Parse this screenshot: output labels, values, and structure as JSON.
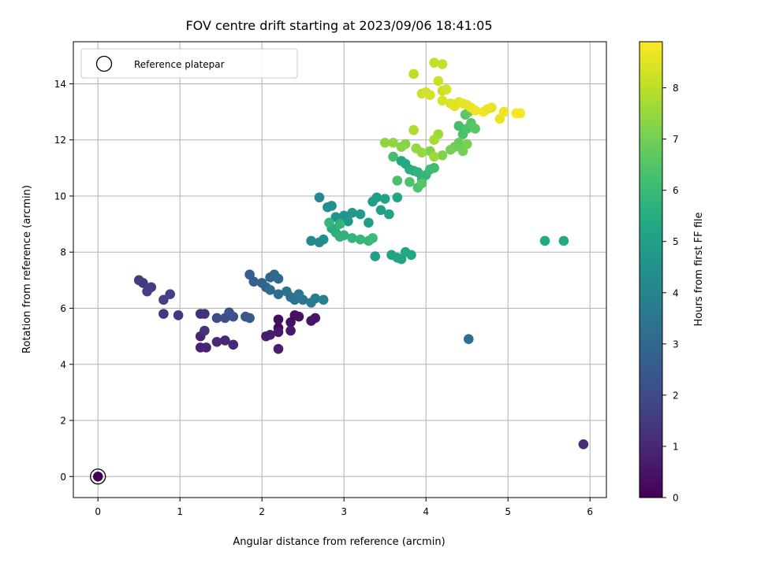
{
  "chart_data": {
    "type": "scatter",
    "title": "FOV centre drift starting at 2023/09/06 18:41:05",
    "xlabel": "Angular distance from reference (arcmin)",
    "ylabel": "Rotation from reference (arcmin)",
    "xlim": [
      -0.3,
      6.2
    ],
    "ylim": [
      -0.75,
      15.5
    ],
    "xticks": [
      "0",
      "1",
      "2",
      "3",
      "4",
      "5",
      "6"
    ],
    "yticks": [
      "0",
      "2",
      "4",
      "6",
      "8",
      "10",
      "12",
      "14"
    ],
    "grid": true,
    "legend": {
      "position": "top-left",
      "entries": [
        "Reference platepar"
      ]
    },
    "reference_point": {
      "x": 0,
      "y": 0
    },
    "colorbar": {
      "label": "Hours from first FF file",
      "range": [
        0,
        8.9
      ],
      "ticks": [
        "0",
        "1",
        "2",
        "3",
        "4",
        "5",
        "6",
        "7",
        "8"
      ],
      "colormap": "viridis"
    },
    "points": [
      {
        "x": 0.0,
        "y": 0.0,
        "h": 0.0
      },
      {
        "x": 2.2,
        "y": 5.3,
        "h": 0.2
      },
      {
        "x": 2.2,
        "y": 5.6,
        "h": 0.3
      },
      {
        "x": 2.35,
        "y": 5.5,
        "h": 0.4
      },
      {
        "x": 2.4,
        "y": 5.75,
        "h": 0.3
      },
      {
        "x": 2.45,
        "y": 5.7,
        "h": 0.4
      },
      {
        "x": 2.6,
        "y": 5.55,
        "h": 0.5
      },
      {
        "x": 2.65,
        "y": 5.65,
        "h": 0.5
      },
      {
        "x": 2.35,
        "y": 5.2,
        "h": 0.6
      },
      {
        "x": 2.2,
        "y": 5.15,
        "h": 0.6
      },
      {
        "x": 2.05,
        "y": 5.0,
        "h": 0.7
      },
      {
        "x": 2.1,
        "y": 5.05,
        "h": 0.7
      },
      {
        "x": 2.2,
        "y": 4.55,
        "h": 0.8
      },
      {
        "x": 1.25,
        "y": 5.0,
        "h": 0.9
      },
      {
        "x": 1.25,
        "y": 4.6,
        "h": 0.9
      },
      {
        "x": 1.32,
        "y": 4.6,
        "h": 0.9
      },
      {
        "x": 1.45,
        "y": 4.8,
        "h": 1.0
      },
      {
        "x": 1.55,
        "y": 4.85,
        "h": 1.0
      },
      {
        "x": 1.65,
        "y": 4.7,
        "h": 1.0
      },
      {
        "x": 5.92,
        "y": 1.15,
        "h": 1.1
      },
      {
        "x": 1.25,
        "y": 5.8,
        "h": 1.2
      },
      {
        "x": 1.3,
        "y": 5.8,
        "h": 1.2
      },
      {
        "x": 1.3,
        "y": 5.2,
        "h": 1.3
      },
      {
        "x": 0.8,
        "y": 5.8,
        "h": 1.4
      },
      {
        "x": 0.98,
        "y": 5.75,
        "h": 1.4
      },
      {
        "x": 0.5,
        "y": 7.0,
        "h": 1.5
      },
      {
        "x": 0.55,
        "y": 6.9,
        "h": 1.5
      },
      {
        "x": 0.6,
        "y": 6.6,
        "h": 1.6
      },
      {
        "x": 0.65,
        "y": 6.75,
        "h": 1.6
      },
      {
        "x": 0.8,
        "y": 6.3,
        "h": 1.7
      },
      {
        "x": 0.88,
        "y": 6.5,
        "h": 1.7
      },
      {
        "x": 1.45,
        "y": 5.65,
        "h": 2.0
      },
      {
        "x": 1.55,
        "y": 5.65,
        "h": 2.1
      },
      {
        "x": 1.6,
        "y": 5.85,
        "h": 2.2
      },
      {
        "x": 1.65,
        "y": 5.7,
        "h": 2.3
      },
      {
        "x": 1.8,
        "y": 5.7,
        "h": 2.4
      },
      {
        "x": 1.85,
        "y": 5.65,
        "h": 2.5
      },
      {
        "x": 1.85,
        "y": 7.2,
        "h": 2.6
      },
      {
        "x": 1.9,
        "y": 6.95,
        "h": 2.7
      },
      {
        "x": 2.0,
        "y": 6.9,
        "h": 2.8
      },
      {
        "x": 2.05,
        "y": 6.75,
        "h": 2.9
      },
      {
        "x": 2.1,
        "y": 7.1,
        "h": 2.9
      },
      {
        "x": 2.15,
        "y": 7.2,
        "h": 3.0
      },
      {
        "x": 2.2,
        "y": 7.05,
        "h": 3.0
      },
      {
        "x": 2.1,
        "y": 6.65,
        "h": 3.1
      },
      {
        "x": 2.2,
        "y": 6.5,
        "h": 3.2
      },
      {
        "x": 2.3,
        "y": 6.6,
        "h": 3.3
      },
      {
        "x": 2.35,
        "y": 6.4,
        "h": 3.3
      },
      {
        "x": 2.4,
        "y": 6.3,
        "h": 3.4
      },
      {
        "x": 2.45,
        "y": 6.5,
        "h": 3.5
      },
      {
        "x": 2.5,
        "y": 6.3,
        "h": 3.5
      },
      {
        "x": 2.6,
        "y": 6.2,
        "h": 3.6
      },
      {
        "x": 2.65,
        "y": 6.35,
        "h": 3.7
      },
      {
        "x": 2.75,
        "y": 6.3,
        "h": 3.8
      },
      {
        "x": 4.52,
        "y": 4.9,
        "h": 3.2
      },
      {
        "x": 2.6,
        "y": 8.4,
        "h": 4.1
      },
      {
        "x": 2.7,
        "y": 8.35,
        "h": 4.2
      },
      {
        "x": 2.75,
        "y": 8.45,
        "h": 4.3
      },
      {
        "x": 2.7,
        "y": 9.95,
        "h": 4.2
      },
      {
        "x": 2.8,
        "y": 9.6,
        "h": 4.4
      },
      {
        "x": 2.85,
        "y": 9.65,
        "h": 4.4
      },
      {
        "x": 2.9,
        "y": 9.25,
        "h": 4.5
      },
      {
        "x": 3.0,
        "y": 9.3,
        "h": 4.6
      },
      {
        "x": 3.05,
        "y": 9.1,
        "h": 4.7
      },
      {
        "x": 3.1,
        "y": 9.4,
        "h": 4.8
      },
      {
        "x": 3.2,
        "y": 9.35,
        "h": 4.8
      },
      {
        "x": 3.3,
        "y": 9.05,
        "h": 4.9
      },
      {
        "x": 3.35,
        "y": 9.8,
        "h": 4.9
      },
      {
        "x": 3.4,
        "y": 9.95,
        "h": 5.0
      },
      {
        "x": 3.45,
        "y": 9.5,
        "h": 5.0
      },
      {
        "x": 3.5,
        "y": 9.9,
        "h": 5.1
      },
      {
        "x": 3.55,
        "y": 9.35,
        "h": 5.1
      },
      {
        "x": 3.65,
        "y": 9.95,
        "h": 5.2
      },
      {
        "x": 3.38,
        "y": 7.85,
        "h": 5.0
      },
      {
        "x": 3.58,
        "y": 7.9,
        "h": 5.1
      },
      {
        "x": 3.65,
        "y": 7.8,
        "h": 5.2
      },
      {
        "x": 3.7,
        "y": 7.75,
        "h": 5.2
      },
      {
        "x": 3.75,
        "y": 8.0,
        "h": 5.3
      },
      {
        "x": 3.82,
        "y": 7.9,
        "h": 5.3
      },
      {
        "x": 5.45,
        "y": 8.4,
        "h": 5.4
      },
      {
        "x": 5.68,
        "y": 8.4,
        "h": 5.4
      },
      {
        "x": 2.85,
        "y": 8.85,
        "h": 5.5
      },
      {
        "x": 2.9,
        "y": 8.7,
        "h": 5.6
      },
      {
        "x": 2.95,
        "y": 8.55,
        "h": 5.7
      },
      {
        "x": 3.0,
        "y": 8.6,
        "h": 5.7
      },
      {
        "x": 3.1,
        "y": 8.5,
        "h": 5.8
      },
      {
        "x": 3.2,
        "y": 8.45,
        "h": 5.9
      },
      {
        "x": 3.3,
        "y": 8.4,
        "h": 5.9
      },
      {
        "x": 2.95,
        "y": 9.0,
        "h": 5.8
      },
      {
        "x": 2.82,
        "y": 9.05,
        "h": 5.9
      },
      {
        "x": 3.7,
        "y": 11.25,
        "h": 5.3
      },
      {
        "x": 3.75,
        "y": 11.15,
        "h": 5.4
      },
      {
        "x": 3.8,
        "y": 10.95,
        "h": 5.5
      },
      {
        "x": 3.85,
        "y": 10.9,
        "h": 5.6
      },
      {
        "x": 3.9,
        "y": 10.85,
        "h": 5.7
      },
      {
        "x": 3.95,
        "y": 10.6,
        "h": 5.8
      },
      {
        "x": 4.0,
        "y": 10.75,
        "h": 5.9
      },
      {
        "x": 4.05,
        "y": 10.95,
        "h": 6.0
      },
      {
        "x": 4.1,
        "y": 11.0,
        "h": 6.1
      },
      {
        "x": 3.6,
        "y": 11.4,
        "h": 6.2
      },
      {
        "x": 3.65,
        "y": 10.55,
        "h": 6.3
      },
      {
        "x": 3.8,
        "y": 10.5,
        "h": 6.4
      },
      {
        "x": 3.9,
        "y": 10.3,
        "h": 6.4
      },
      {
        "x": 3.95,
        "y": 10.45,
        "h": 6.5
      },
      {
        "x": 3.35,
        "y": 8.5,
        "h": 6.0
      },
      {
        "x": 4.4,
        "y": 12.5,
        "h": 6.2
      },
      {
        "x": 4.45,
        "y": 12.2,
        "h": 6.3
      },
      {
        "x": 4.5,
        "y": 12.4,
        "h": 6.4
      },
      {
        "x": 4.55,
        "y": 12.6,
        "h": 6.5
      },
      {
        "x": 4.6,
        "y": 12.4,
        "h": 6.6
      },
      {
        "x": 4.48,
        "y": 12.9,
        "h": 6.6
      },
      {
        "x": 4.52,
        "y": 13.0,
        "h": 6.7
      },
      {
        "x": 4.4,
        "y": 11.9,
        "h": 6.8
      },
      {
        "x": 4.35,
        "y": 11.75,
        "h": 6.9
      },
      {
        "x": 4.3,
        "y": 11.65,
        "h": 7.0
      },
      {
        "x": 4.45,
        "y": 11.6,
        "h": 7.0
      },
      {
        "x": 4.5,
        "y": 11.85,
        "h": 7.1
      },
      {
        "x": 4.2,
        "y": 11.45,
        "h": 7.2
      },
      {
        "x": 4.05,
        "y": 11.6,
        "h": 7.2
      },
      {
        "x": 3.7,
        "y": 11.75,
        "h": 7.3
      },
      {
        "x": 3.75,
        "y": 11.85,
        "h": 7.3
      },
      {
        "x": 3.6,
        "y": 11.9,
        "h": 7.4
      },
      {
        "x": 3.5,
        "y": 11.9,
        "h": 7.4
      },
      {
        "x": 3.88,
        "y": 11.7,
        "h": 7.5
      },
      {
        "x": 3.95,
        "y": 11.55,
        "h": 7.5
      },
      {
        "x": 4.1,
        "y": 11.4,
        "h": 7.6
      },
      {
        "x": 4.15,
        "y": 12.2,
        "h": 7.6
      },
      {
        "x": 4.1,
        "y": 12.0,
        "h": 7.7
      },
      {
        "x": 3.85,
        "y": 12.35,
        "h": 7.8
      },
      {
        "x": 3.85,
        "y": 14.35,
        "h": 8.0
      },
      {
        "x": 4.1,
        "y": 14.75,
        "h": 8.1
      },
      {
        "x": 4.2,
        "y": 14.7,
        "h": 8.1
      },
      {
        "x": 4.15,
        "y": 14.1,
        "h": 8.2
      },
      {
        "x": 4.2,
        "y": 13.75,
        "h": 8.2
      },
      {
        "x": 4.25,
        "y": 13.8,
        "h": 8.3
      },
      {
        "x": 3.95,
        "y": 13.65,
        "h": 8.2
      },
      {
        "x": 4.0,
        "y": 13.7,
        "h": 8.3
      },
      {
        "x": 4.05,
        "y": 13.6,
        "h": 8.3
      },
      {
        "x": 4.2,
        "y": 13.4,
        "h": 8.4
      },
      {
        "x": 4.3,
        "y": 13.3,
        "h": 8.4
      },
      {
        "x": 4.35,
        "y": 13.2,
        "h": 8.5
      },
      {
        "x": 4.4,
        "y": 13.35,
        "h": 8.5
      },
      {
        "x": 4.45,
        "y": 13.3,
        "h": 8.6
      },
      {
        "x": 4.5,
        "y": 13.25,
        "h": 8.6
      },
      {
        "x": 4.55,
        "y": 13.15,
        "h": 8.6
      },
      {
        "x": 4.6,
        "y": 13.05,
        "h": 8.7
      },
      {
        "x": 4.7,
        "y": 13.0,
        "h": 8.7
      },
      {
        "x": 4.75,
        "y": 13.1,
        "h": 8.7
      },
      {
        "x": 4.8,
        "y": 13.15,
        "h": 8.6
      },
      {
        "x": 4.9,
        "y": 12.75,
        "h": 8.6
      },
      {
        "x": 4.95,
        "y": 13.0,
        "h": 8.7
      },
      {
        "x": 5.1,
        "y": 12.95,
        "h": 8.8
      },
      {
        "x": 5.15,
        "y": 12.95,
        "h": 8.8
      }
    ]
  }
}
